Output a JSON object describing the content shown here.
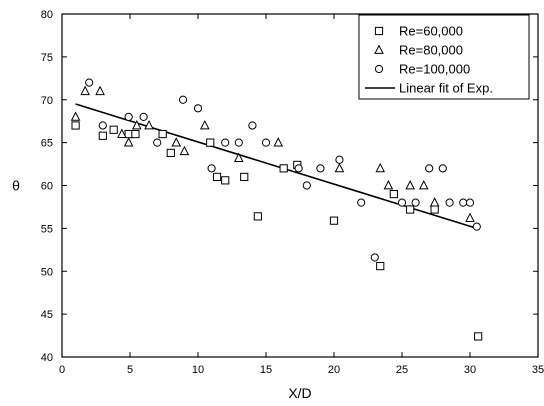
{
  "chart_data": {
    "type": "scatter",
    "xlabel": "X/D",
    "ylabel": "θ",
    "xlim": [
      0,
      35
    ],
    "ylim": [
      40,
      80
    ],
    "xticks": [
      0,
      5,
      10,
      15,
      20,
      25,
      30,
      35
    ],
    "yticks": [
      40,
      45,
      50,
      55,
      60,
      65,
      70,
      75,
      80
    ],
    "grid": false,
    "legend_position": "top-right",
    "series": [
      {
        "name": "Re=60,000",
        "marker": "square",
        "points": [
          [
            1.0,
            67.0
          ],
          [
            3.0,
            65.8
          ],
          [
            3.8,
            66.5
          ],
          [
            4.9,
            66.0
          ],
          [
            5.4,
            66.0
          ],
          [
            7.4,
            66.0
          ],
          [
            8.0,
            63.8
          ],
          [
            10.9,
            65.0
          ],
          [
            11.4,
            61.0
          ],
          [
            12.0,
            60.6
          ],
          [
            13.4,
            61.0
          ],
          [
            14.4,
            56.4
          ],
          [
            16.3,
            62.0
          ],
          [
            17.3,
            62.4
          ],
          [
            20.0,
            55.9
          ],
          [
            23.4,
            50.6
          ],
          [
            24.4,
            59.0
          ],
          [
            25.6,
            57.2
          ],
          [
            27.4,
            57.2
          ],
          [
            30.6,
            42.4
          ]
        ]
      },
      {
        "name": "Re=80,000",
        "marker": "triangle",
        "points": [
          [
            1.0,
            68.0
          ],
          [
            1.7,
            71.0
          ],
          [
            2.8,
            71.0
          ],
          [
            4.4,
            66.0
          ],
          [
            4.9,
            65.0
          ],
          [
            5.5,
            67.0
          ],
          [
            6.4,
            67.0
          ],
          [
            8.4,
            65.0
          ],
          [
            9.0,
            64.0
          ],
          [
            10.5,
            67.0
          ],
          [
            13.0,
            63.2
          ],
          [
            15.9,
            65.0
          ],
          [
            20.4,
            62.0
          ],
          [
            23.4,
            62.0
          ],
          [
            24.0,
            60.0
          ],
          [
            25.6,
            60.0
          ],
          [
            26.6,
            60.0
          ],
          [
            27.4,
            58.0
          ],
          [
            30.0,
            56.2
          ]
        ]
      },
      {
        "name": "Re=100,000",
        "marker": "circle",
        "points": [
          [
            2.0,
            72.0
          ],
          [
            3.0,
            67.0
          ],
          [
            4.9,
            68.0
          ],
          [
            6.0,
            68.0
          ],
          [
            7.0,
            65.0
          ],
          [
            8.9,
            70.0
          ],
          [
            10.0,
            69.0
          ],
          [
            11.0,
            62.0
          ],
          [
            12.0,
            65.0
          ],
          [
            13.0,
            65.0
          ],
          [
            14.0,
            67.0
          ],
          [
            15.0,
            65.0
          ],
          [
            17.4,
            62.0
          ],
          [
            18.0,
            60.0
          ],
          [
            19.0,
            62.0
          ],
          [
            20.4,
            63.0
          ],
          [
            22.0,
            58.0
          ],
          [
            23.0,
            51.6
          ],
          [
            25.0,
            58.0
          ],
          [
            26.0,
            58.0
          ],
          [
            27.0,
            62.0
          ],
          [
            28.0,
            62.0
          ],
          [
            28.5,
            58.0
          ],
          [
            29.5,
            58.0
          ],
          [
            30.0,
            58.0
          ],
          [
            30.5,
            55.2
          ]
        ]
      },
      {
        "name": "Linear fit of Exp.",
        "marker": "line",
        "points": [
          [
            1.0,
            69.5
          ],
          [
            30.5,
            55.0
          ]
        ]
      }
    ]
  }
}
